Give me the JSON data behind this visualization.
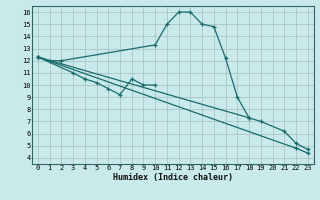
{
  "bg_color": "#c8eaea",
  "grid_major_color": "#e8a0a0",
  "grid_minor_color": "#a0cccc",
  "line_color": "#1a6b6b",
  "xlabel": "Humidex (Indice chaleur)",
  "xlim": [
    -0.5,
    23.5
  ],
  "ylim": [
    3.5,
    16.5
  ],
  "xticks": [
    0,
    1,
    2,
    3,
    4,
    5,
    6,
    7,
    8,
    9,
    10,
    11,
    12,
    13,
    14,
    15,
    16,
    17,
    18,
    19,
    20,
    21,
    22,
    23
  ],
  "yticks": [
    4,
    5,
    6,
    7,
    8,
    9,
    10,
    11,
    12,
    13,
    14,
    15,
    16
  ],
  "series1_x": [
    0,
    1,
    2,
    10,
    11,
    12,
    13,
    14,
    15,
    16,
    17,
    18
  ],
  "series1_y": [
    12.3,
    12.0,
    12.0,
    13.3,
    15.0,
    16.0,
    16.0,
    15.0,
    14.8,
    12.2,
    9.0,
    7.3
  ],
  "series2_x": [
    0,
    3,
    4,
    5,
    6,
    7,
    8,
    9,
    10
  ],
  "series2_y": [
    12.3,
    11.0,
    10.5,
    10.2,
    9.7,
    9.2,
    10.5,
    10.0,
    10.0
  ],
  "series3_x": [
    0,
    18,
    19,
    21,
    22,
    23
  ],
  "series3_y": [
    12.3,
    7.3,
    7.0,
    6.2,
    5.2,
    4.7
  ],
  "series4_x": [
    0,
    22,
    23
  ],
  "series4_y": [
    12.3,
    4.8,
    4.4
  ]
}
